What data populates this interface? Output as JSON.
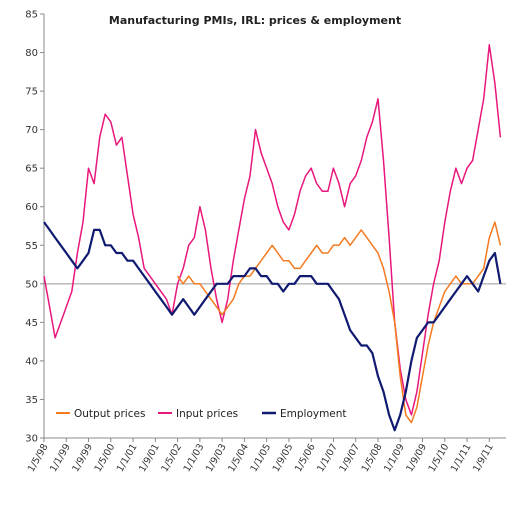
{
  "chart_data": {
    "type": "line",
    "title": "Manufacturing PMIs, IRL: prices & employment",
    "xlabel": "",
    "ylabel": "",
    "ylim": [
      30,
      85
    ],
    "yticks": [
      30,
      35,
      40,
      45,
      50,
      55,
      60,
      65,
      70,
      75,
      80,
      85
    ],
    "reference_line": 50,
    "grid": false,
    "legend_position": "bottom-left",
    "x_tick_labels": [
      "1/5/98",
      "1/1/99",
      "1/9/99",
      "1/5/00",
      "1/1/01",
      "1/9/01",
      "1/5/02",
      "1/1/03",
      "1/9/03",
      "1/5/04",
      "1/1/05",
      "1/9/05",
      "1/5/06",
      "1/1/07",
      "1/9/07",
      "1/5/08",
      "1/1/09",
      "1/9/09",
      "1/5/10",
      "1/1/11",
      "1/9/11"
    ],
    "x_tick_positions": [
      0,
      8,
      16,
      24,
      32,
      40,
      48,
      56,
      64,
      72,
      80,
      88,
      96,
      104,
      112,
      120,
      128,
      136,
      144,
      152,
      160
    ],
    "series": [
      {
        "name": "Output prices",
        "color": "#f47a20",
        "x": [
          48,
          50,
          52,
          54,
          56,
          58,
          60,
          62,
          64,
          66,
          68,
          70,
          72,
          74,
          76,
          78,
          80,
          82,
          84,
          86,
          88,
          90,
          92,
          94,
          96,
          98,
          100,
          102,
          104,
          106,
          108,
          110,
          112,
          114,
          116,
          118,
          120,
          122,
          124,
          126,
          128,
          130,
          132,
          134,
          136,
          138,
          140,
          142,
          144,
          146,
          148,
          150,
          152,
          154,
          156,
          158,
          160,
          162,
          164
        ],
        "values": [
          51,
          50,
          51,
          50,
          50,
          49,
          48,
          47,
          46,
          47,
          48,
          50,
          51,
          51,
          52,
          53,
          54,
          55,
          54,
          53,
          53,
          52,
          52,
          53,
          54,
          55,
          54,
          54,
          55,
          55,
          56,
          55,
          56,
          57,
          56,
          55,
          54,
          52,
          49,
          45,
          38,
          33,
          32,
          34,
          38,
          42,
          45,
          47,
          49,
          50,
          51,
          50,
          50,
          50,
          51,
          52,
          56,
          58,
          55
        ]
      },
      {
        "name": "Input prices",
        "color": "#e8177d",
        "x": [
          0,
          2,
          4,
          6,
          8,
          10,
          12,
          14,
          16,
          18,
          20,
          22,
          24,
          26,
          28,
          30,
          32,
          34,
          36,
          38,
          40,
          42,
          44,
          46,
          48,
          50,
          52,
          54,
          56,
          58,
          60,
          62,
          64,
          66,
          68,
          70,
          72,
          74,
          76,
          78,
          80,
          82,
          84,
          86,
          88,
          90,
          92,
          94,
          96,
          98,
          100,
          102,
          104,
          106,
          108,
          110,
          112,
          114,
          116,
          118,
          120,
          122,
          124,
          126,
          128,
          130,
          132,
          134,
          136,
          138,
          140,
          142,
          144,
          146,
          148,
          150,
          152,
          154,
          156,
          158,
          160,
          162,
          164
        ],
        "values": [
          51,
          47,
          43,
          45,
          47,
          49,
          54,
          58,
          65,
          63,
          69,
          72,
          71,
          68,
          69,
          64,
          59,
          56,
          52,
          51,
          50,
          49,
          48,
          46,
          50,
          52,
          55,
          56,
          60,
          57,
          52,
          48,
          45,
          48,
          53,
          57,
          61,
          64,
          70,
          67,
          65,
          63,
          60,
          58,
          57,
          59,
          62,
          64,
          65,
          63,
          62,
          62,
          65,
          63,
          60,
          63,
          64,
          66,
          69,
          71,
          74,
          66,
          56,
          45,
          39,
          35,
          33,
          36,
          41,
          46,
          50,
          53,
          58,
          62,
          65,
          63,
          65,
          66,
          70,
          74,
          81,
          76,
          69
        ]
      },
      {
        "name": "Employment",
        "color": "#0f1a70",
        "x": [
          0,
          2,
          4,
          6,
          8,
          10,
          12,
          14,
          16,
          18,
          20,
          22,
          24,
          26,
          28,
          30,
          32,
          34,
          36,
          38,
          40,
          42,
          44,
          46,
          48,
          50,
          52,
          54,
          56,
          58,
          60,
          62,
          64,
          66,
          68,
          70,
          72,
          74,
          76,
          78,
          80,
          82,
          84,
          86,
          88,
          90,
          92,
          94,
          96,
          98,
          100,
          102,
          104,
          106,
          108,
          110,
          112,
          114,
          116,
          118,
          120,
          122,
          124,
          126,
          128,
          130,
          132,
          134,
          136,
          138,
          140,
          142,
          144,
          146,
          148,
          150,
          152,
          154,
          156,
          158,
          160,
          162,
          164
        ],
        "values": [
          58,
          57,
          56,
          55,
          54,
          53,
          52,
          53,
          54,
          57,
          57,
          55,
          55,
          54,
          54,
          53,
          53,
          52,
          51,
          50,
          49,
          48,
          47,
          46,
          47,
          48,
          47,
          46,
          47,
          48,
          49,
          50,
          50,
          50,
          51,
          51,
          51,
          52,
          52,
          51,
          51,
          50,
          50,
          49,
          50,
          50,
          51,
          51,
          51,
          50,
          50,
          50,
          49,
          48,
          46,
          44,
          43,
          42,
          42,
          41,
          38,
          36,
          33,
          31,
          33,
          36,
          40,
          43,
          44,
          45,
          45,
          46,
          47,
          48,
          49,
          50,
          51,
          50,
          49,
          51,
          53,
          54,
          50
        ]
      }
    ]
  }
}
